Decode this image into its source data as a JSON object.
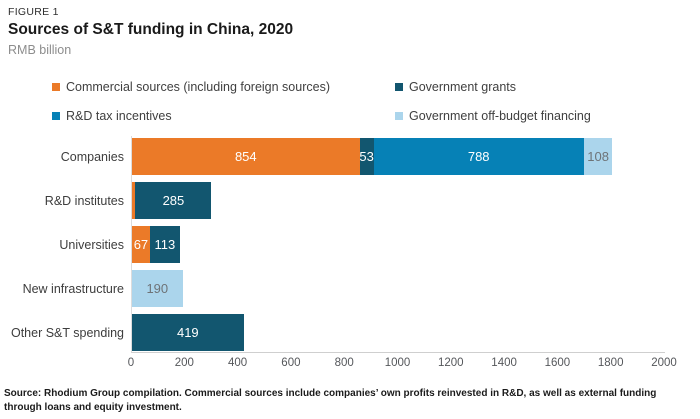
{
  "header": {
    "figure_label": "FIGURE 1",
    "title": "Sources of S&T funding in China, 2020",
    "subtitle": "RMB billion"
  },
  "legend": [
    {
      "label": "Commercial sources (including foreign sources)",
      "color": "#EB7A28"
    },
    {
      "label": "Government grants",
      "color": "#12566F"
    },
    {
      "label": "R&D tax incentives",
      "color": "#0681B6"
    },
    {
      "label": "Government off-budget financing",
      "color": "#ABD5EC"
    }
  ],
  "chart_data": {
    "type": "bar",
    "orientation": "horizontal",
    "stacked": true,
    "title": "Sources of S&T funding in China, 2020",
    "ylabel": "",
    "xlabel": "RMB billion",
    "xlim": [
      0,
      2000
    ],
    "x_ticks": [
      0,
      200,
      400,
      600,
      800,
      1000,
      1200,
      1400,
      1600,
      1800,
      2000
    ],
    "grid": false,
    "legend_position": "top",
    "categories": [
      "Companies",
      "R&D institutes",
      "Universities",
      "New infrastructure",
      "Other S&T spending"
    ],
    "series": [
      {
        "name": "Commercial sources (including foreign sources)",
        "color": "#EB7A28",
        "label_color": "#ffffff",
        "values": [
          854,
          13,
          67,
          0,
          0
        ],
        "shown_labels": [
          "854",
          "",
          "67",
          "",
          ""
        ]
      },
      {
        "name": "Government grants",
        "color": "#12566F",
        "label_color": "#ffffff",
        "values": [
          53,
          285,
          113,
          0,
          419
        ],
        "shown_labels": [
          "53",
          "285",
          "113",
          "",
          "419"
        ]
      },
      {
        "name": "R&D tax incentives",
        "color": "#0681B6",
        "label_color": "#ffffff",
        "values": [
          788,
          0,
          0,
          0,
          0
        ],
        "shown_labels": [
          "788",
          "",
          "",
          "",
          ""
        ]
      },
      {
        "name": "Government off-budget financing",
        "color": "#ABD5EC",
        "label_color": "#6E7377",
        "values": [
          108,
          0,
          0,
          190,
          0
        ],
        "shown_labels": [
          "108",
          "",
          "",
          "190",
          ""
        ]
      }
    ]
  },
  "footer": {
    "source_note": "Source: Rhodium Group compilation. Commercial sources include companies’ own profits reinvested in R&D, as well as external funding through loans and equity investment."
  }
}
